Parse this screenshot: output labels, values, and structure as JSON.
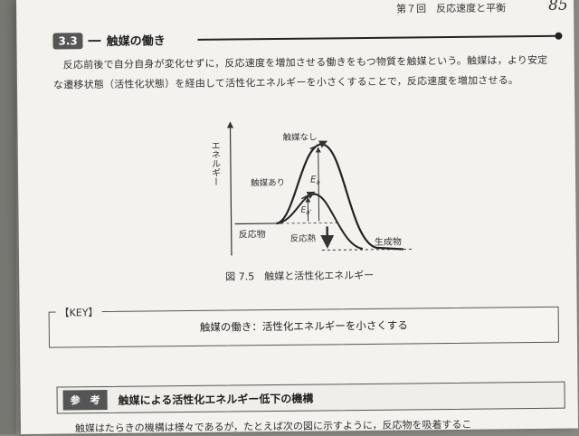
{
  "header": {
    "chapter": "第７回　反応速度と平衡",
    "page_number": "85"
  },
  "section": {
    "number": "3.3",
    "title": "触媒の働き"
  },
  "body": {
    "paragraph": "反応前後で自分自身が変化せずに，反応速度を増加させる働きをもつ物質を触媒という。触媒は，より安定な遷移状態（活性化状態）を経由して活性化エネルギーを小さくすることで，反応速度を増加させる。"
  },
  "figure": {
    "y_axis_label": "エネルギー",
    "curve_no_catalyst": "触媒なし",
    "curve_with_catalyst": "触媒あり",
    "ea_label": "E",
    "ea_sub": "a",
    "ea_prime_label": "E",
    "ea_prime_sub": "a'",
    "reactant_label": "反応物",
    "product_label": "生成物",
    "heat_label": "反応熱",
    "caption": "図 7.5　触媒と活性化エネルギー"
  },
  "key": {
    "label": "【KEY】",
    "text": "触媒の働き：活性化エネルギーを小さくする"
  },
  "reference": {
    "badge": "参　考",
    "title": "触媒による活性化エネルギー低下の機構"
  },
  "bottom_text": "触媒はたらきの機構は様々であるが，たとえば次の図に示すように，反応物を吸着するこ",
  "colors": {
    "page": "#f3f2ef",
    "badge": "#555555",
    "text": "#333333"
  }
}
